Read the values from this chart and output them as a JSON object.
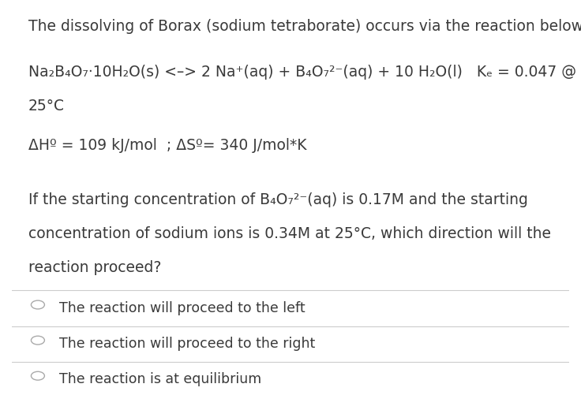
{
  "background_color": "#ffffff",
  "title_line": "The dissolving of Borax (sodium tetraborate) occurs via the reaction below",
  "option1": "The reaction will proceed to the left",
  "option2": "The reaction will proceed to the right",
  "option3": "The reaction is at equilibrium",
  "text_color": "#3a3a3a",
  "line_color": "#cccccc",
  "font_size_title": 13.5,
  "font_size_body": 13.5,
  "font_size_options": 12.5
}
